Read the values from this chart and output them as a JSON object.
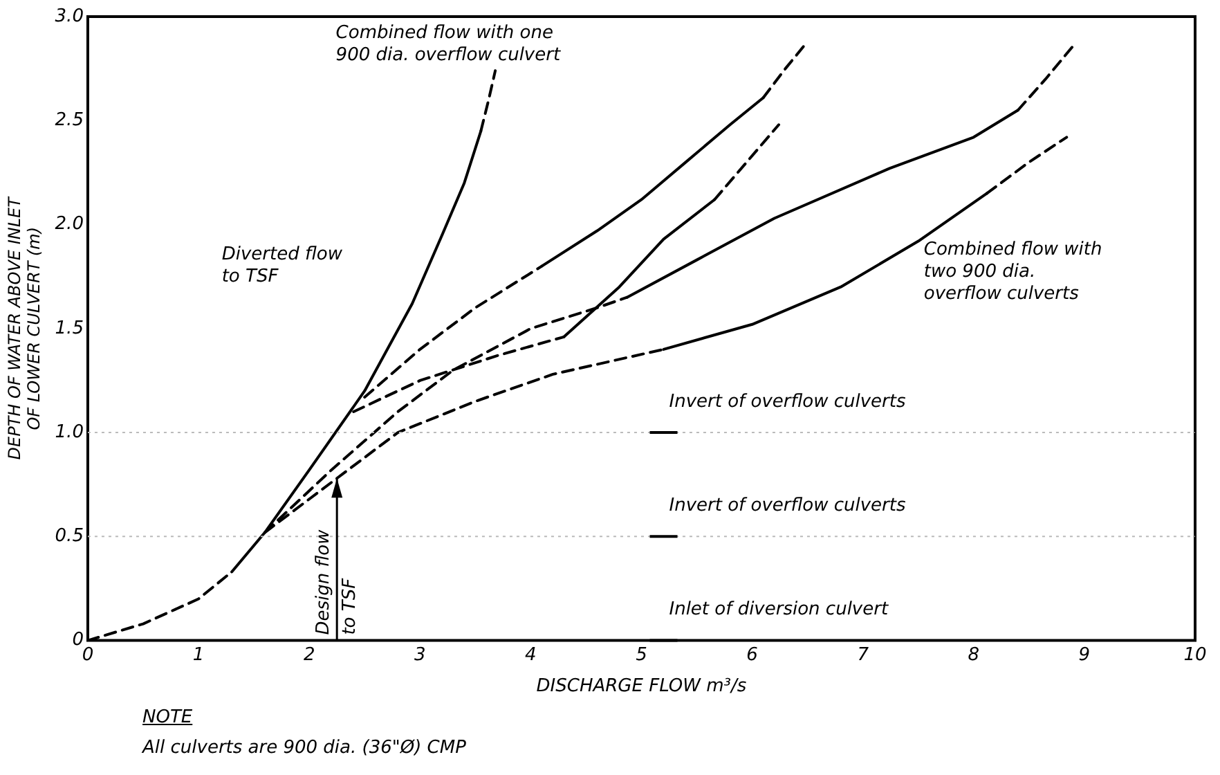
{
  "chart_data": {
    "type": "line",
    "xlabel": "DISCHARGE FLOW m³/s",
    "ylabel": "DEPTH OF WATER ABOVE INLET\nOF LOWER CULVERT (m)",
    "xlim": [
      0,
      10
    ],
    "xticks": [
      0,
      1,
      2,
      3,
      4,
      5,
      6,
      7,
      8,
      9,
      10
    ],
    "ylim": [
      0,
      3.0
    ],
    "yticks": [
      0,
      0.5,
      {
        "value": 1,
        "label": "1.0"
      },
      1.5,
      {
        "value": 2,
        "label": "2.0"
      },
      2.5,
      {
        "value": 3,
        "label": "3.0"
      }
    ],
    "grid": false,
    "legend": false,
    "marker": "none",
    "series": [
      {
        "color": "#000000",
        "line_style": "dashed",
        "x": [
          0,
          0.5,
          1,
          1.3
        ],
        "values": [
          0,
          0.08,
          0.2,
          0.33
        ]
      },
      {
        "color": "#000000",
        "line_style": "solid",
        "x": [
          1.3,
          1.6,
          2,
          2.5,
          2.93,
          3.2,
          3.4,
          3.55
        ],
        "values": [
          0.33,
          0.52,
          0.82,
          1.2,
          1.62,
          1.95,
          2.2,
          2.45
        ]
      },
      {
        "color": "#000000",
        "line_style": "dashed",
        "x": [
          3.55,
          3.62,
          3.68
        ],
        "values": [
          2.45,
          2.6,
          2.74
        ]
      },
      {
        "color": "#000000",
        "line_style": "dashed",
        "x": [
          2.5,
          3,
          3.5,
          4.1
        ],
        "values": [
          1.17,
          1.4,
          1.6,
          1.8
        ]
      },
      {
        "color": "#000000",
        "line_style": "solid",
        "x": [
          4.1,
          4.6,
          5,
          5.4,
          5.8,
          6.1
        ],
        "values": [
          1.8,
          1.97,
          2.12,
          2.3,
          2.48,
          2.61
        ]
      },
      {
        "color": "#000000",
        "line_style": "dashed",
        "x": [
          6.1,
          6.3,
          6.5
        ],
        "values": [
          2.61,
          2.75,
          2.88
        ]
      },
      {
        "color": "#000000",
        "line_style": "dashed",
        "x": [
          2.4,
          3,
          3.7,
          4.3
        ],
        "values": [
          1.1,
          1.25,
          1.37,
          1.46
        ]
      },
      {
        "color": "#000000",
        "line_style": "solid",
        "x": [
          4.3,
          4.8,
          5.2,
          5.66
        ],
        "values": [
          1.46,
          1.7,
          1.93,
          2.12
        ]
      },
      {
        "color": "#000000",
        "line_style": "dashed",
        "x": [
          5.66,
          5.95,
          6.24
        ],
        "values": [
          2.12,
          2.3,
          2.48
        ]
      },
      {
        "color": "#000000",
        "line_style": "dashed",
        "x": [
          1.6,
          2.2,
          2.8,
          3.3,
          4,
          4.6,
          4.87
        ],
        "values": [
          0.52,
          0.82,
          1.1,
          1.3,
          1.5,
          1.6,
          1.65
        ]
      },
      {
        "color": "#000000",
        "line_style": "solid",
        "x": [
          4.87,
          5.5,
          6.2,
          7.24,
          8,
          8.4
        ],
        "values": [
          1.65,
          1.83,
          2.03,
          2.27,
          2.42,
          2.55
        ]
      },
      {
        "color": "#000000",
        "line_style": "dashed",
        "x": [
          8.4,
          8.65,
          8.9
        ],
        "values": [
          2.55,
          2.7,
          2.86
        ]
      },
      {
        "color": "#000000",
        "line_style": "dashed",
        "x": [
          1.6,
          2.3,
          2.8,
          3.5,
          4.2,
          5.2
        ],
        "values": [
          0.52,
          0.8,
          1.0,
          1.15,
          1.28,
          1.4
        ]
      },
      {
        "color": "#000000",
        "line_style": "solid",
        "x": [
          5.2,
          6,
          6.8,
          7.5,
          8.12
        ],
        "values": [
          1.4,
          1.52,
          1.7,
          1.92,
          2.15
        ]
      },
      {
        "color": "#000000",
        "line_style": "dashed",
        "x": [
          8.12,
          8.5,
          8.84
        ],
        "values": [
          2.15,
          2.3,
          2.42
        ]
      }
    ],
    "ref_lines": [
      {
        "axis": "y",
        "value": 1.0,
        "label": "Invert of overflow culverts",
        "line_style": "dotted",
        "color": "#bbbbbb"
      },
      {
        "axis": "y",
        "value": 0.5,
        "label": "Invert of overflow culverts",
        "line_style": "dotted",
        "color": "#bbbbbb"
      },
      {
        "axis": "y",
        "value": 0,
        "label": "Inlet of diversion culvert",
        "line_style": "solid",
        "color": "#000000"
      }
    ],
    "annotations": [
      "Combined flow with one\n900 dia. overflow culvert",
      "Diverted flow\nto TSF",
      "Combined flow with\ntwo 900 dia.\noverflow culverts",
      {
        "text": "Design flow\nto TSF",
        "x": 2.25,
        "y": 0.78
      },
      "NOTE",
      "All culverts are 900 dia. (36\"Ø) CMP"
    ]
  }
}
